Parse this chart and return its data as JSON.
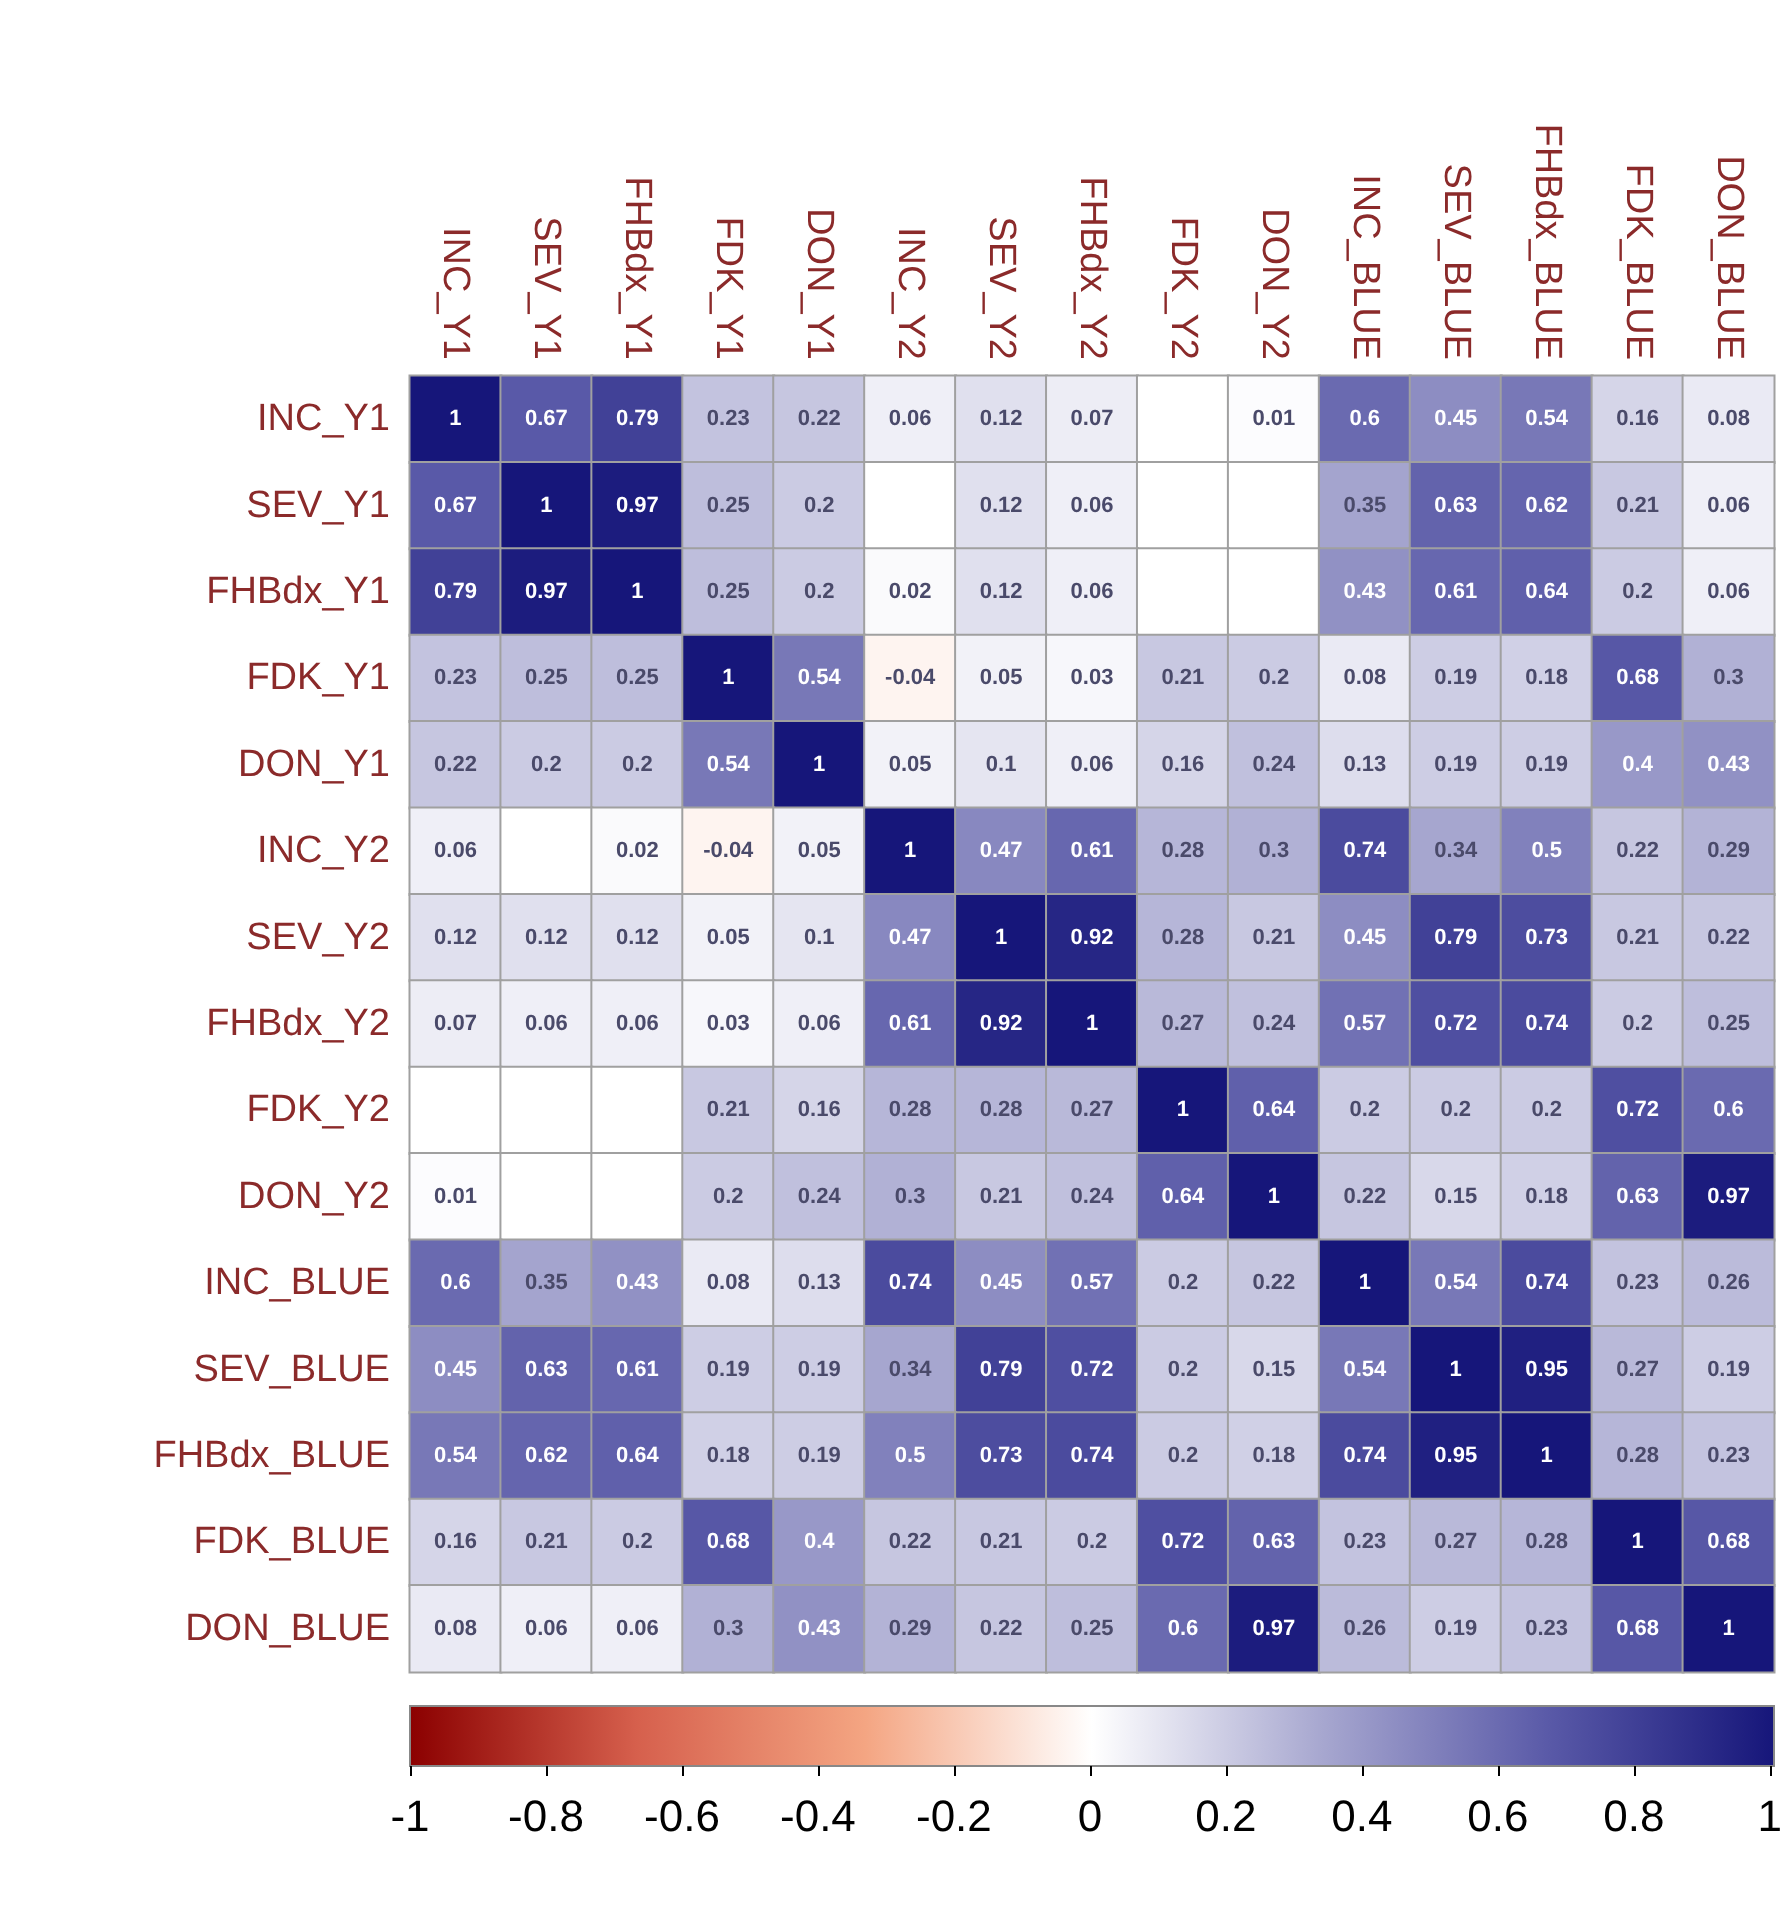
{
  "chart_data": {
    "type": "heatmap",
    "categories": [
      "INC_Y1",
      "SEV_Y1",
      "FHBdx_Y1",
      "FDK_Y1",
      "DON_Y1",
      "INC_Y2",
      "SEV_Y2",
      "FHBdx_Y2",
      "FDK_Y2",
      "DON_Y2",
      "INC_BLUE",
      "SEV_BLUE",
      "FHBdx_BLUE",
      "FDK_BLUE",
      "DON_BLUE"
    ],
    "y_categories": [
      "INC_Y1",
      "SEV_Y1",
      "FHBdx_Y1",
      "FDK_Y1",
      "DON_Y1",
      "INC_Y2",
      "SEV_Y2",
      "FHBdx_Y2",
      "FDK_Y2",
      "DON_Y2",
      "INC_BLUE",
      "SEV_BLUE",
      "FHBdx_BLUE",
      "FDK_BLUE",
      "DON_BLUE"
    ],
    "cells": [
      [
        1,
        0.67,
        0.79,
        0.23,
        0.22,
        0.06,
        0.12,
        0.07,
        0,
        0.01,
        0.6,
        0.45,
        0.54,
        0.16,
        0.08
      ],
      [
        0.67,
        1,
        0.97,
        0.25,
        0.2,
        0,
        0.12,
        0.06,
        0,
        0,
        0.35,
        0.63,
        0.62,
        0.21,
        0.06
      ],
      [
        0.79,
        0.97,
        1,
        0.25,
        0.2,
        0.02,
        0.12,
        0.06,
        0,
        0,
        0.43,
        0.61,
        0.64,
        0.2,
        0.06
      ],
      [
        0.23,
        0.25,
        0.25,
        1,
        0.54,
        -0.04,
        0.05,
        0.03,
        0.21,
        0.2,
        0.08,
        0.19,
        0.18,
        0.68,
        0.3
      ],
      [
        0.22,
        0.2,
        0.2,
        0.54,
        1,
        0.05,
        0.1,
        0.06,
        0.16,
        0.24,
        0.13,
        0.19,
        0.19,
        0.4,
        0.43
      ],
      [
        0.06,
        0,
        0.02,
        -0.04,
        0.05,
        1,
        0.47,
        0.61,
        0.28,
        0.3,
        0.74,
        0.34,
        0.5,
        0.22,
        0.29
      ],
      [
        0.12,
        0.12,
        0.12,
        0.05,
        0.1,
        0.47,
        1,
        0.92,
        0.28,
        0.21,
        0.45,
        0.79,
        0.73,
        0.21,
        0.22
      ],
      [
        0.07,
        0.06,
        0.06,
        0.03,
        0.06,
        0.61,
        0.92,
        1,
        0.27,
        0.24,
        0.57,
        0.72,
        0.74,
        0.2,
        0.25
      ],
      [
        0,
        0,
        0,
        0.21,
        0.16,
        0.28,
        0.28,
        0.27,
        1,
        0.64,
        0.2,
        0.2,
        0.2,
        0.72,
        0.6
      ],
      [
        0.01,
        0,
        0,
        0.2,
        0.24,
        0.3,
        0.21,
        0.24,
        0.64,
        1,
        0.22,
        0.15,
        0.18,
        0.63,
        0.97
      ],
      [
        0.6,
        0.35,
        0.43,
        0.08,
        0.13,
        0.74,
        0.45,
        0.57,
        0.2,
        0.22,
        1,
        0.54,
        0.74,
        0.23,
        0.26
      ],
      [
        0.45,
        0.63,
        0.61,
        0.19,
        0.19,
        0.34,
        0.79,
        0.72,
        0.2,
        0.15,
        0.54,
        1,
        0.95,
        0.27,
        0.19
      ],
      [
        0.54,
        0.62,
        0.64,
        0.18,
        0.19,
        0.5,
        0.73,
        0.74,
        0.2,
        0.18,
        0.74,
        0.95,
        1,
        0.28,
        0.23
      ],
      [
        0.16,
        0.21,
        0.2,
        0.68,
        0.4,
        0.22,
        0.21,
        0.2,
        0.72,
        0.63,
        0.23,
        0.27,
        0.28,
        1,
        0.68
      ],
      [
        0.08,
        0.06,
        0.06,
        0.3,
        0.43,
        0.29,
        0.22,
        0.25,
        0.6,
        0.97,
        0.26,
        0.19,
        0.23,
        0.68,
        1
      ]
    ],
    "cell_labels": [
      [
        "1",
        "0.67",
        "0.79",
        "0.23",
        "0.22",
        "0.06",
        "0.12",
        "0.07",
        null,
        "0.01",
        "0.6",
        "0.45",
        "0.54",
        "0.16",
        "0.08"
      ],
      [
        "0.67",
        "1",
        "0.97",
        "0.25",
        "0.2",
        null,
        "0.12",
        "0.06",
        null,
        null,
        "0.35",
        "0.63",
        "0.62",
        "0.21",
        "0.06"
      ],
      [
        "0.79",
        "0.97",
        "1",
        "0.25",
        "0.2",
        "0.02",
        "0.12",
        "0.06",
        null,
        null,
        "0.43",
        "0.61",
        "0.64",
        "0.2",
        "0.06"
      ],
      [
        "0.23",
        "0.25",
        "0.25",
        "1",
        "0.54",
        "-0.04",
        "0.05",
        "0.03",
        "0.21",
        "0.2",
        "0.08",
        "0.19",
        "0.18",
        "0.68",
        "0.3"
      ],
      [
        "0.22",
        "0.2",
        "0.2",
        "0.54",
        "1",
        "0.05",
        "0.1",
        "0.06",
        "0.16",
        "0.24",
        "0.13",
        "0.19",
        "0.19",
        "0.4",
        "0.43"
      ],
      [
        "0.06",
        null,
        "0.02",
        "-0.04",
        "0.05",
        "1",
        "0.47",
        "0.61",
        "0.28",
        "0.3",
        "0.74",
        "0.34",
        "0.5",
        "0.22",
        "0.29"
      ],
      [
        "0.12",
        "0.12",
        "0.12",
        "0.05",
        "0.1",
        "0.47",
        "1",
        "0.92",
        "0.28",
        "0.21",
        "0.45",
        "0.79",
        "0.73",
        "0.21",
        "0.22"
      ],
      [
        "0.07",
        "0.06",
        "0.06",
        "0.03",
        "0.06",
        "0.61",
        "0.92",
        "1",
        "0.27",
        "0.24",
        "0.57",
        "0.72",
        "0.74",
        "0.2",
        "0.25"
      ],
      [
        null,
        null,
        null,
        "0.21",
        "0.16",
        "0.28",
        "0.28",
        "0.27",
        "1",
        "0.64",
        "0.2",
        "0.2",
        "0.2",
        "0.72",
        "0.6"
      ],
      [
        "0.01",
        null,
        null,
        "0.2",
        "0.24",
        "0.3",
        "0.21",
        "0.24",
        "0.64",
        "1",
        "0.22",
        "0.15",
        "0.18",
        "0.63",
        "0.97"
      ],
      [
        "0.6",
        "0.35",
        "0.43",
        "0.08",
        "0.13",
        "0.74",
        "0.45",
        "0.57",
        "0.2",
        "0.22",
        "1",
        "0.54",
        "0.74",
        "0.23",
        "0.26"
      ],
      [
        "0.45",
        "0.63",
        "0.61",
        "0.19",
        "0.19",
        "0.34",
        "0.79",
        "0.72",
        "0.2",
        "0.15",
        "0.54",
        "1",
        "0.95",
        "0.27",
        "0.19"
      ],
      [
        "0.54",
        "0.62",
        "0.64",
        "0.18",
        "0.19",
        "0.5",
        "0.73",
        "0.74",
        "0.2",
        "0.18",
        "0.74",
        "0.95",
        "1",
        "0.28",
        "0.23"
      ],
      [
        "0.16",
        "0.21",
        "0.2",
        "0.68",
        "0.4",
        "0.22",
        "0.21",
        "0.2",
        "0.72",
        "0.63",
        "0.23",
        "0.27",
        "0.28",
        "1",
        "0.68"
      ],
      [
        "0.08",
        "0.06",
        "0.06",
        "0.3",
        "0.43",
        "0.29",
        "0.22",
        "0.25",
        "0.6",
        "0.97",
        "0.26",
        "0.19",
        "0.23",
        "0.68",
        "1"
      ]
    ],
    "clim": [
      -1,
      1
    ],
    "cticks": [
      -1,
      -0.8,
      -0.6,
      -0.4,
      -0.2,
      0,
      0.2,
      0.4,
      0.6,
      0.8,
      1
    ]
  }
}
